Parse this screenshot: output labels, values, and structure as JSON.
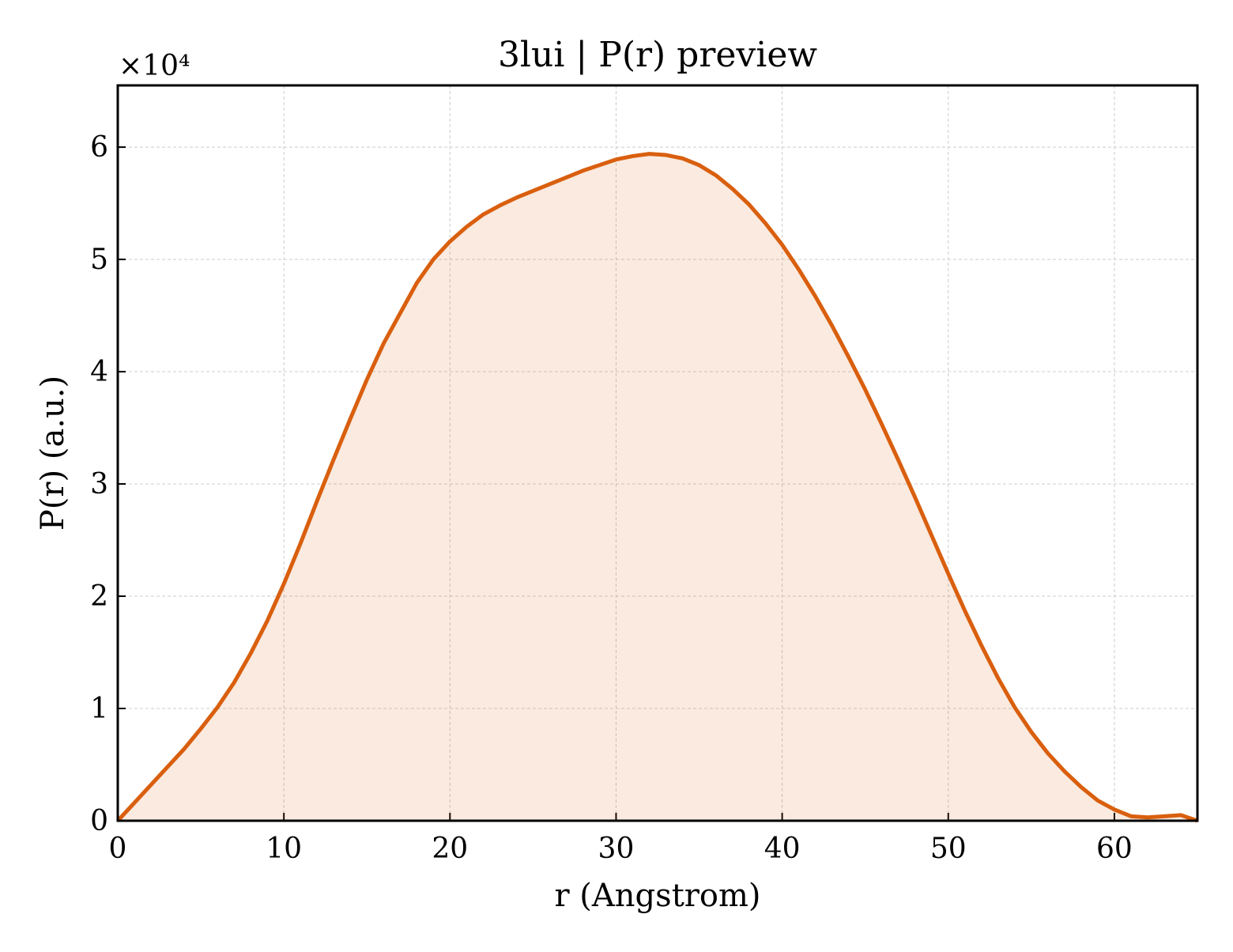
{
  "chart_data": {
    "type": "line",
    "title": "3lui | P(r) preview",
    "x_label": "r (Angstrom)",
    "y_label": "P(r) (a.u.)",
    "y_offset_label": "×10⁴",
    "x": [
      0,
      1,
      2,
      3,
      4,
      5,
      6,
      7,
      8,
      9,
      10,
      11,
      12,
      13,
      14,
      15,
      16,
      17,
      18,
      19,
      20,
      21,
      22,
      23,
      24,
      25,
      26,
      27,
      28,
      29,
      30,
      31,
      32,
      33,
      34,
      35,
      36,
      37,
      38,
      39,
      40,
      41,
      42,
      43,
      44,
      45,
      46,
      47,
      48,
      49,
      50,
      51,
      52,
      53,
      54,
      55,
      56,
      57,
      58,
      59,
      60,
      61,
      62,
      63,
      64,
      65
    ],
    "series": [
      {
        "name": "P(r)",
        "color": "#d95f0e",
        "fill": true,
        "values": [
          0,
          0.16,
          0.32,
          0.48,
          0.64,
          0.82,
          1.01,
          1.23,
          1.49,
          1.78,
          2.11,
          2.47,
          2.85,
          3.22,
          3.58,
          3.93,
          4.25,
          4.52,
          4.79,
          5.0,
          5.16,
          5.29,
          5.4,
          5.48,
          5.55,
          5.61,
          5.67,
          5.73,
          5.79,
          5.84,
          5.89,
          5.92,
          5.94,
          5.93,
          5.9,
          5.84,
          5.75,
          5.63,
          5.49,
          5.32,
          5.13,
          4.91,
          4.67,
          4.41,
          4.13,
          3.84,
          3.53,
          3.21,
          2.88,
          2.54,
          2.2,
          1.87,
          1.56,
          1.27,
          1.01,
          0.79,
          0.6,
          0.44,
          0.3,
          0.18,
          0.1,
          0.04,
          0.03,
          0.04,
          0.05,
          0.0
        ]
      }
    ],
    "xlim": [
      0,
      65
    ],
    "xticks": [
      0,
      10,
      20,
      30,
      40,
      50,
      60
    ],
    "ylim": [
      0,
      6.55
    ],
    "yticks": [
      0,
      1,
      2,
      3,
      4,
      5,
      6
    ],
    "grid": true
  }
}
